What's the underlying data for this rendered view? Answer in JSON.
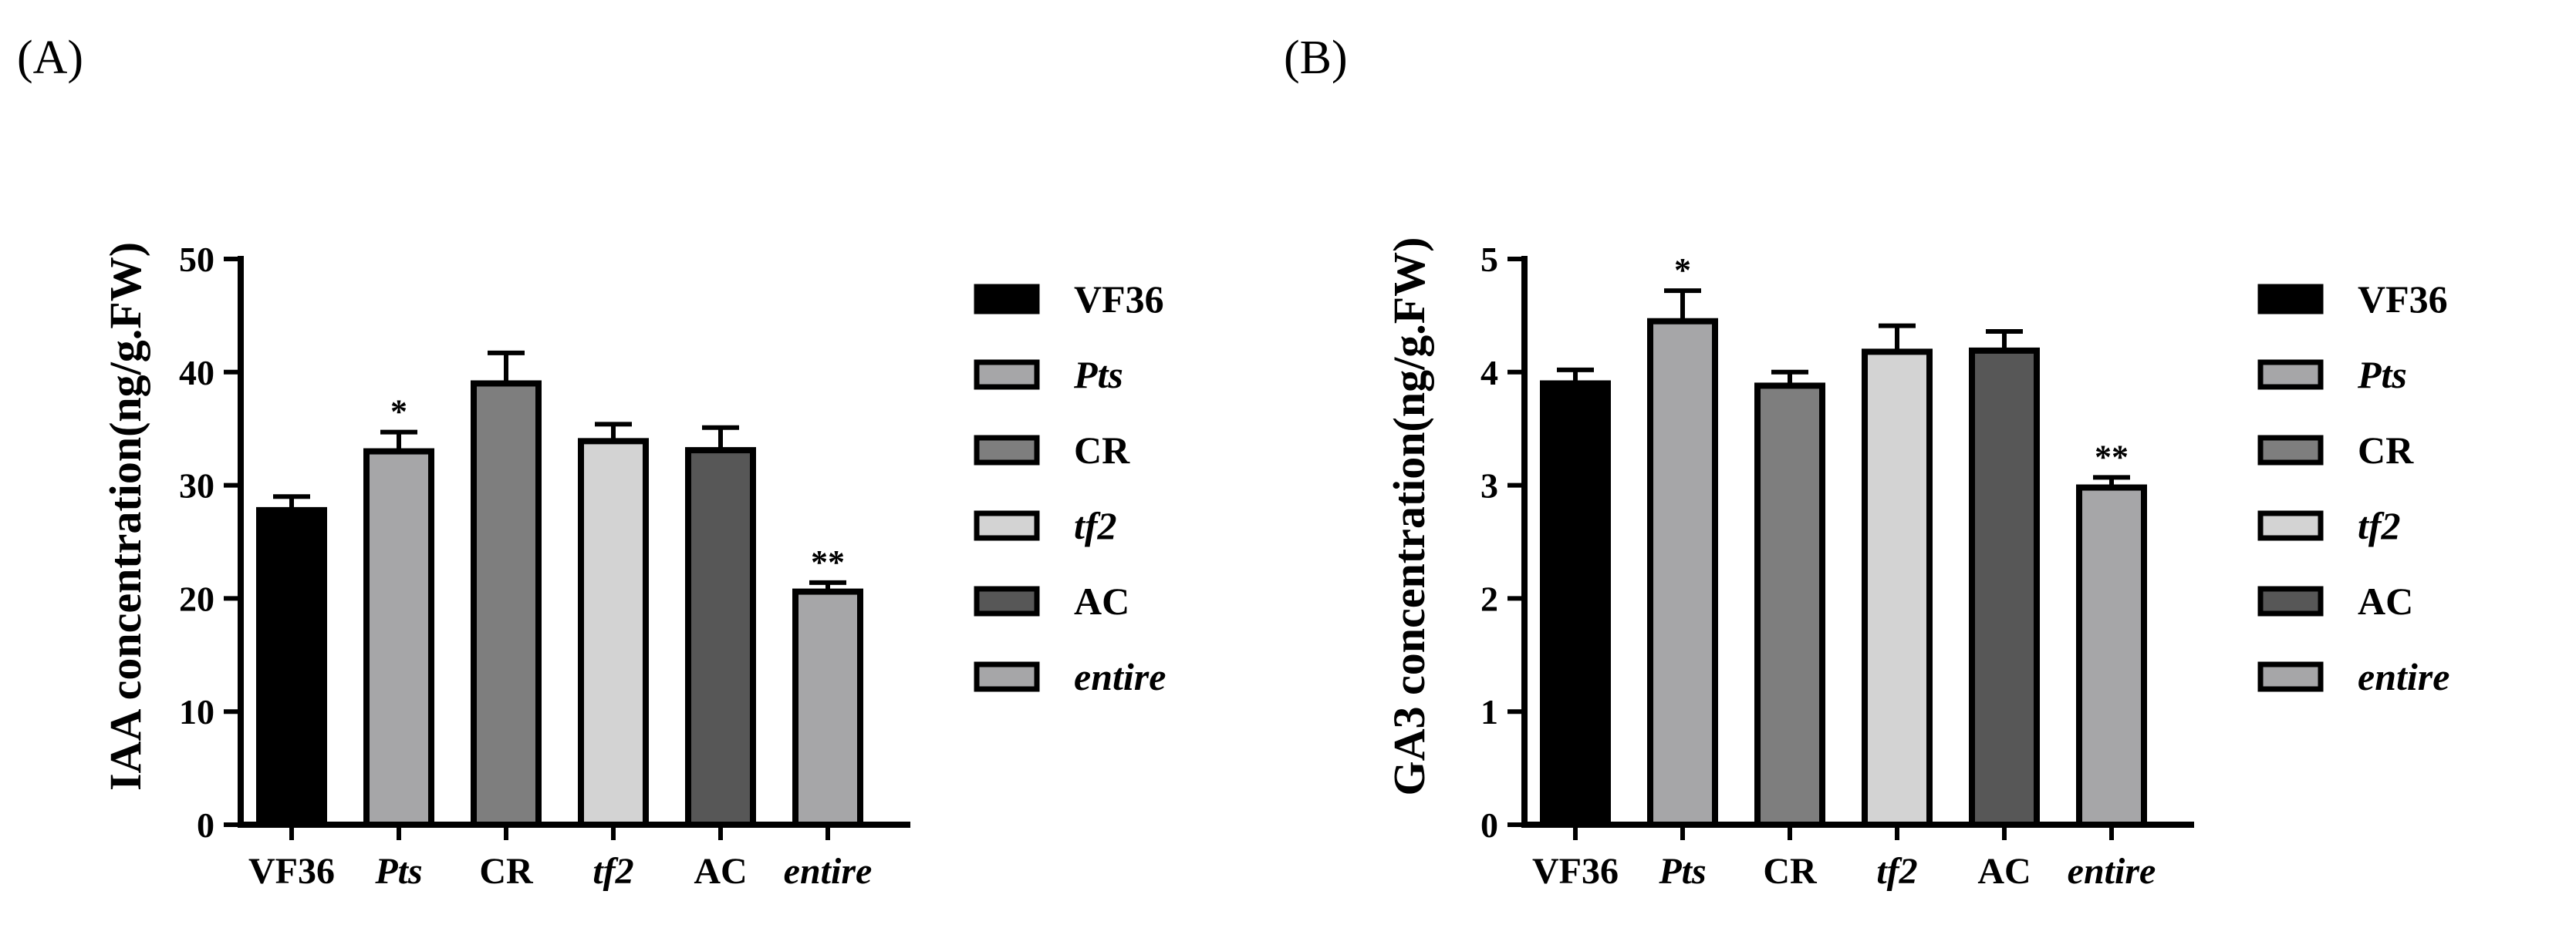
{
  "panel_labels": [
    "(A)",
    "(B)"
  ],
  "chart_data": [
    {
      "type": "bar",
      "panel": "(A)",
      "categories": [
        "VF36",
        "Pts",
        "CR",
        "tf2",
        "AC",
        "entire"
      ],
      "italic_categories": [
        "Pts",
        "tf2",
        "entire"
      ],
      "values": [
        27.8,
        33.0,
        39.0,
        33.9,
        33.1,
        20.6
      ],
      "errors": [
        1.2,
        1.7,
        2.7,
        1.5,
        2.0,
        0.8
      ],
      "significance": [
        "",
        "*",
        "",
        "",
        "",
        "**"
      ],
      "colors": [
        "#000000",
        "#a6a6a8",
        "#7e7e7e",
        "#d3d3d3",
        "#575757",
        "#a6a6a8"
      ],
      "title": "",
      "xlabel": "",
      "ylabel": "IAA concentration(ng/g.FW)",
      "ylim": [
        0,
        50
      ],
      "yticks": [
        "0",
        "10",
        "20",
        "30",
        "40",
        "50"
      ],
      "legend": [
        "VF36",
        "Pts",
        "CR",
        "tf2",
        "AC",
        "entire"
      ],
      "legend_position": "right"
    },
    {
      "type": "bar",
      "panel": "(B)",
      "categories": [
        "VF36",
        "Pts",
        "CR",
        "tf2",
        "AC",
        "entire"
      ],
      "italic_categories": [
        "Pts",
        "tf2",
        "entire"
      ],
      "values": [
        3.9,
        4.45,
        3.88,
        4.18,
        4.19,
        2.98
      ],
      "errors": [
        0.12,
        0.27,
        0.12,
        0.23,
        0.17,
        0.09
      ],
      "significance": [
        "",
        "*",
        "",
        "",
        "",
        "**"
      ],
      "colors": [
        "#000000",
        "#a6a6a8",
        "#7e7e7e",
        "#d3d3d3",
        "#575757",
        "#a6a6a8"
      ],
      "title": "",
      "xlabel": "",
      "ylabel": "GA3 concentration(ng/g.FW)",
      "ylim": [
        0,
        5
      ],
      "yticks": [
        "0",
        "1",
        "2",
        "3",
        "4",
        "5"
      ],
      "legend": [
        "VF36",
        "Pts",
        "CR",
        "tf2",
        "AC",
        "entire"
      ],
      "legend_position": "right"
    }
  ]
}
